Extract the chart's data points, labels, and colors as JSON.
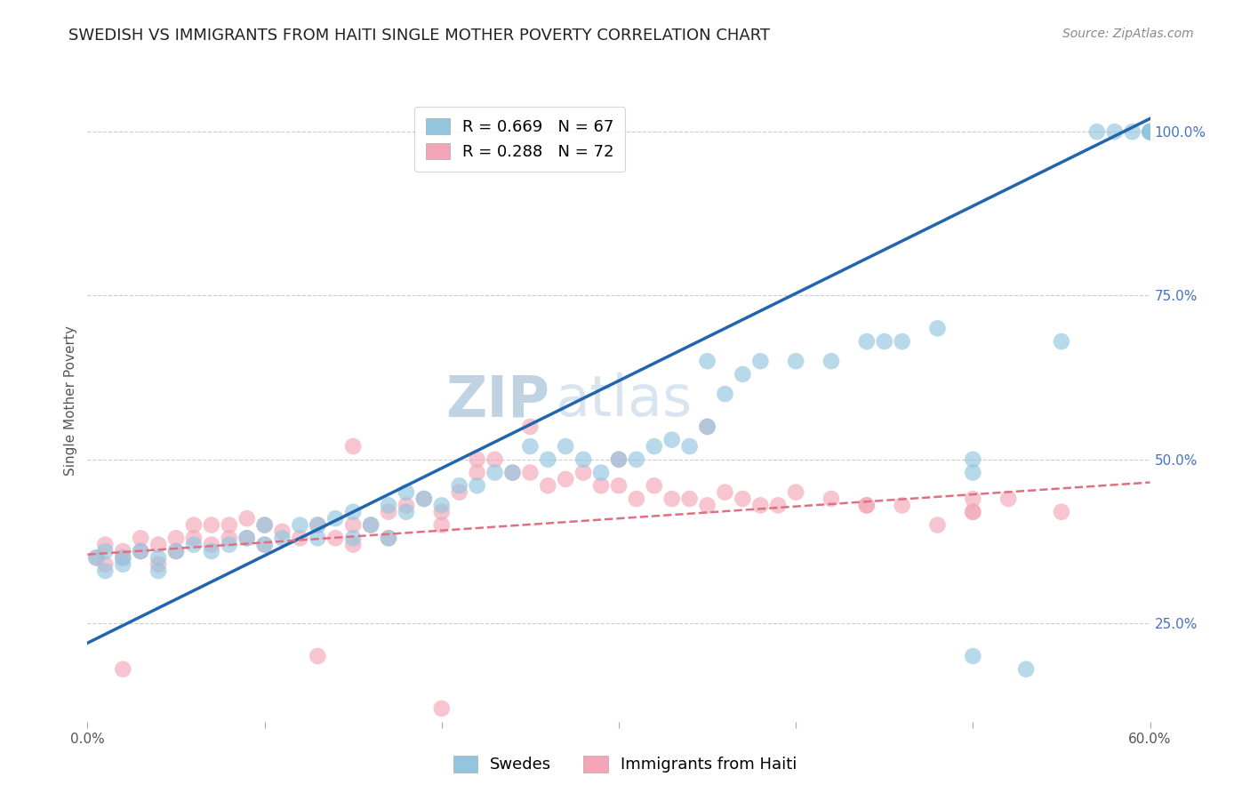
{
  "title": "SWEDISH VS IMMIGRANTS FROM HAITI SINGLE MOTHER POVERTY CORRELATION CHART",
  "source": "Source: ZipAtlas.com",
  "ylabel": "Single Mother Poverty",
  "xlim": [
    0.0,
    0.6
  ],
  "ylim": [
    0.1,
    1.08
  ],
  "ytick_values": [
    0.25,
    0.5,
    0.75,
    1.0
  ],
  "ytick_labels": [
    "25.0%",
    "50.0%",
    "75.0%",
    "100.0%"
  ],
  "xtick_values": [
    0.0,
    0.1,
    0.2,
    0.3,
    0.4,
    0.5,
    0.6
  ],
  "legend_blue_text": "R = 0.669   N = 67",
  "legend_pink_text": "R = 0.288   N = 72",
  "legend_blue_label": "Swedes",
  "legend_pink_label": "Immigrants from Haiti",
  "blue_color": "#92c5de",
  "pink_color": "#f4a6b8",
  "blue_line_color": "#2166ac",
  "pink_line_color": "#e07080",
  "watermark_zip": "ZIP",
  "watermark_atlas": "atlas",
  "blue_line_x0": 0.0,
  "blue_line_y0": 0.22,
  "blue_line_x1": 0.6,
  "blue_line_y1": 1.02,
  "pink_line_x0": 0.0,
  "pink_line_y0": 0.355,
  "pink_line_x1": 0.6,
  "pink_line_y1": 0.465,
  "title_fontsize": 13,
  "source_fontsize": 10,
  "axis_label_fontsize": 11,
  "tick_fontsize": 11,
  "legend_fontsize": 13,
  "watermark_fontsize": 46,
  "watermark_color": "#c5d8ea",
  "background_color": "#ffffff",
  "grid_color": "#cccccc",
  "blue_scatter_x": [
    0.005,
    0.01,
    0.01,
    0.02,
    0.02,
    0.03,
    0.04,
    0.04,
    0.05,
    0.06,
    0.07,
    0.08,
    0.09,
    0.1,
    0.1,
    0.11,
    0.12,
    0.13,
    0.13,
    0.14,
    0.15,
    0.15,
    0.16,
    0.17,
    0.17,
    0.18,
    0.18,
    0.19,
    0.2,
    0.21,
    0.22,
    0.23,
    0.24,
    0.25,
    0.26,
    0.27,
    0.28,
    0.29,
    0.3,
    0.31,
    0.32,
    0.33,
    0.34,
    0.35,
    0.36,
    0.37,
    0.38,
    0.4,
    0.42,
    0.44,
    0.46,
    0.48,
    0.5,
    0.5,
    0.55,
    0.57,
    0.59,
    0.6,
    0.6,
    0.6,
    0.6,
    0.6,
    0.35,
    0.45,
    0.5,
    0.53,
    0.58
  ],
  "blue_scatter_y": [
    0.35,
    0.33,
    0.36,
    0.35,
    0.34,
    0.36,
    0.33,
    0.35,
    0.36,
    0.37,
    0.36,
    0.37,
    0.38,
    0.37,
    0.4,
    0.38,
    0.4,
    0.38,
    0.4,
    0.41,
    0.38,
    0.42,
    0.4,
    0.38,
    0.43,
    0.45,
    0.42,
    0.44,
    0.43,
    0.46,
    0.46,
    0.48,
    0.48,
    0.52,
    0.5,
    0.52,
    0.5,
    0.48,
    0.5,
    0.5,
    0.52,
    0.53,
    0.52,
    0.55,
    0.6,
    0.63,
    0.65,
    0.65,
    0.65,
    0.68,
    0.68,
    0.7,
    0.48,
    0.5,
    0.68,
    1.0,
    1.0,
    1.0,
    1.0,
    1.0,
    1.0,
    1.0,
    0.65,
    0.68,
    0.2,
    0.18,
    1.0
  ],
  "pink_scatter_x": [
    0.005,
    0.01,
    0.01,
    0.02,
    0.02,
    0.03,
    0.03,
    0.04,
    0.04,
    0.05,
    0.05,
    0.06,
    0.06,
    0.07,
    0.07,
    0.08,
    0.08,
    0.09,
    0.09,
    0.1,
    0.1,
    0.11,
    0.12,
    0.13,
    0.14,
    0.15,
    0.15,
    0.16,
    0.17,
    0.17,
    0.18,
    0.19,
    0.2,
    0.2,
    0.21,
    0.22,
    0.22,
    0.23,
    0.24,
    0.25,
    0.26,
    0.27,
    0.28,
    0.29,
    0.3,
    0.3,
    0.31,
    0.32,
    0.33,
    0.34,
    0.35,
    0.36,
    0.37,
    0.38,
    0.39,
    0.4,
    0.42,
    0.44,
    0.46,
    0.48,
    0.5,
    0.5,
    0.15,
    0.25,
    0.35,
    0.44,
    0.5,
    0.52,
    0.55,
    0.02,
    0.13,
    0.2
  ],
  "pink_scatter_y": [
    0.35,
    0.34,
    0.37,
    0.35,
    0.36,
    0.36,
    0.38,
    0.34,
    0.37,
    0.36,
    0.38,
    0.38,
    0.4,
    0.37,
    0.4,
    0.38,
    0.4,
    0.38,
    0.41,
    0.37,
    0.4,
    0.39,
    0.38,
    0.4,
    0.38,
    0.37,
    0.4,
    0.4,
    0.38,
    0.42,
    0.43,
    0.44,
    0.4,
    0.42,
    0.45,
    0.48,
    0.5,
    0.5,
    0.48,
    0.48,
    0.46,
    0.47,
    0.48,
    0.46,
    0.46,
    0.5,
    0.44,
    0.46,
    0.44,
    0.44,
    0.43,
    0.45,
    0.44,
    0.43,
    0.43,
    0.45,
    0.44,
    0.43,
    0.43,
    0.4,
    0.42,
    0.44,
    0.52,
    0.55,
    0.55,
    0.43,
    0.42,
    0.44,
    0.42,
    0.18,
    0.2,
    0.12
  ]
}
